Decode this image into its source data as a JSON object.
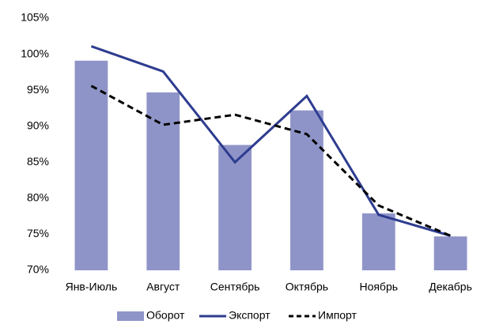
{
  "chart_data": {
    "type": "bar",
    "categories": [
      "Янв-Июль",
      "Август",
      "Сентябрь",
      "Октябрь",
      "Ноябрь",
      "Декабрь"
    ],
    "series": [
      {
        "name": "Оборот",
        "type": "bar",
        "color": "#8f94c8",
        "values": [
          99.1,
          94.7,
          87.4,
          92.2,
          77.9,
          74.7
        ]
      },
      {
        "name": "Экспорт",
        "type": "line",
        "color": "#2e3c8f",
        "dashed": false,
        "values": [
          101.1,
          97.6,
          85.0,
          94.2,
          77.7,
          74.8
        ]
      },
      {
        "name": "Импорт",
        "type": "line",
        "color": "#000000",
        "dashed": true,
        "values": [
          95.6,
          90.2,
          91.6,
          88.9,
          79.0,
          74.8
        ]
      }
    ],
    "ylim": [
      70,
      105
    ],
    "yticks": [
      {
        "value": 70,
        "label": "70%"
      },
      {
        "value": 75,
        "label": "75%"
      },
      {
        "value": 80,
        "label": "80%"
      },
      {
        "value": 85,
        "label": "85%"
      },
      {
        "value": 90,
        "label": "90%"
      },
      {
        "value": 95,
        "label": "95%"
      },
      {
        "value": 100,
        "label": "100%"
      },
      {
        "value": 105,
        "label": "105%"
      }
    ],
    "grid": false,
    "legend": "bottom"
  }
}
